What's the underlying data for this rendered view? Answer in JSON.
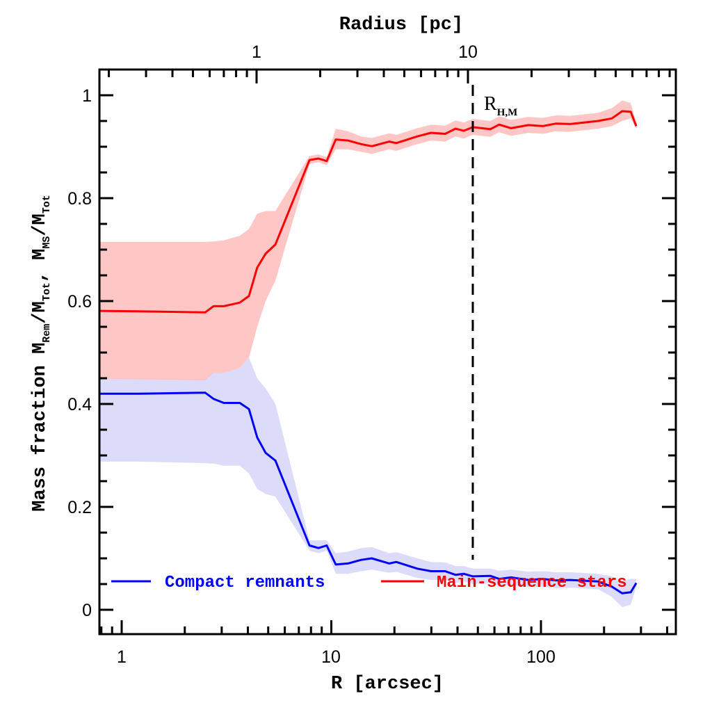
{
  "chart_data": {
    "type": "line",
    "xlabel": "R [arcsec]",
    "x_scale": "log",
    "xlim": [
      0.78,
      440
    ],
    "x_ticks": [
      "1",
      "10",
      "100"
    ],
    "top_axis": {
      "label": "Radius [pc]",
      "scale": "log",
      "ticks": [
        "1",
        "10"
      ]
    },
    "ylabel_parts": {
      "main": "Mass fraction",
      "rem": "M",
      "rem_sub": "Rem",
      "sep1": "/M",
      "tot_sub": "Tot",
      "comma": ", M",
      "ms_sub": "MS",
      "sep2": "/M",
      "tot_sub2": "Tot"
    },
    "ylim": [
      -0.047,
      1.05
    ],
    "y_ticks": [
      "0",
      "0.2",
      "0.4",
      "0.6",
      "0.8",
      "1"
    ],
    "grid": false,
    "legend_placement": "bottom",
    "x": [
      0.783,
      1.21,
      2.5,
      2.74,
      3.07,
      3.66,
      4.05,
      4.43,
      4.86,
      5.41,
      7.87,
      8.68,
      9.51,
      10.5,
      12.0,
      13.9,
      15.6,
      18.9,
      20.4,
      25.7,
      29.9,
      34.9,
      39.1,
      42.8,
      47.3,
      57.3,
      63.2,
      72.0,
      87.1,
      102,
      118,
      138,
      187,
      218,
      244,
      268,
      285
    ],
    "series": [
      {
        "name": "Compact remnants",
        "color": "#0000ff",
        "band_color": "#dcdcfa",
        "values": [
          0.42,
          0.42,
          0.422,
          0.41,
          0.402,
          0.402,
          0.39,
          0.335,
          0.305,
          0.29,
          0.125,
          0.12,
          0.125,
          0.088,
          0.09,
          0.097,
          0.1,
          0.09,
          0.093,
          0.08,
          0.075,
          0.075,
          0.068,
          0.07,
          0.065,
          0.066,
          0.06,
          0.063,
          0.058,
          0.06,
          0.057,
          0.058,
          0.055,
          0.045,
          0.032,
          0.034,
          0.052
        ],
        "upper": [
          0.45,
          0.45,
          0.449,
          0.46,
          0.46,
          0.47,
          0.49,
          0.45,
          0.43,
          0.4,
          0.135,
          0.135,
          0.135,
          0.11,
          0.113,
          0.12,
          0.122,
          0.11,
          0.112,
          0.1,
          0.093,
          0.092,
          0.085,
          0.085,
          0.08,
          0.08,
          0.076,
          0.078,
          0.074,
          0.075,
          0.073,
          0.073,
          0.07,
          0.065,
          0.055,
          0.06,
          0.06
        ],
        "lower": [
          0.288,
          0.288,
          0.285,
          0.284,
          0.28,
          0.28,
          0.265,
          0.235,
          0.225,
          0.22,
          0.115,
          0.11,
          0.115,
          0.07,
          0.07,
          0.075,
          0.078,
          0.072,
          0.074,
          0.062,
          0.058,
          0.058,
          0.052,
          0.055,
          0.05,
          0.052,
          0.046,
          0.048,
          0.044,
          0.045,
          0.042,
          0.043,
          0.04,
          0.025,
          0.005,
          0.01,
          0.045
        ]
      },
      {
        "name": "Main-sequence stars",
        "color": "#ff0000",
        "band_color": "#ffc0c0",
        "values": [
          0.581,
          0.58,
          0.578,
          0.59,
          0.59,
          0.597,
          0.61,
          0.665,
          0.692,
          0.71,
          0.874,
          0.877,
          0.872,
          0.914,
          0.912,
          0.905,
          0.901,
          0.91,
          0.907,
          0.92,
          0.927,
          0.925,
          0.935,
          0.931,
          0.938,
          0.934,
          0.943,
          0.936,
          0.942,
          0.94,
          0.945,
          0.944,
          0.95,
          0.955,
          0.969,
          0.968,
          0.94
        ],
        "upper": [
          0.715,
          0.715,
          0.715,
          0.716,
          0.718,
          0.727,
          0.74,
          0.77,
          0.775,
          0.775,
          0.882,
          0.885,
          0.88,
          0.935,
          0.93,
          0.92,
          0.917,
          0.926,
          0.923,
          0.936,
          0.943,
          0.941,
          0.951,
          0.947,
          0.954,
          0.95,
          0.959,
          0.952,
          0.958,
          0.956,
          0.961,
          0.96,
          0.966,
          0.975,
          0.99,
          0.985,
          0.945
        ],
        "lower": [
          0.449,
          0.448,
          0.446,
          0.46,
          0.46,
          0.47,
          0.49,
          0.55,
          0.6,
          0.64,
          0.866,
          0.87,
          0.864,
          0.895,
          0.895,
          0.89,
          0.886,
          0.895,
          0.892,
          0.905,
          0.912,
          0.91,
          0.92,
          0.916,
          0.923,
          0.919,
          0.928,
          0.921,
          0.927,
          0.925,
          0.93,
          0.929,
          0.935,
          0.94,
          0.95,
          0.955,
          0.935
        ]
      }
    ],
    "vline": {
      "x": 47.3,
      "label": "R",
      "label_sub": "H,M",
      "style": "dashed",
      "color": "#000000"
    }
  }
}
